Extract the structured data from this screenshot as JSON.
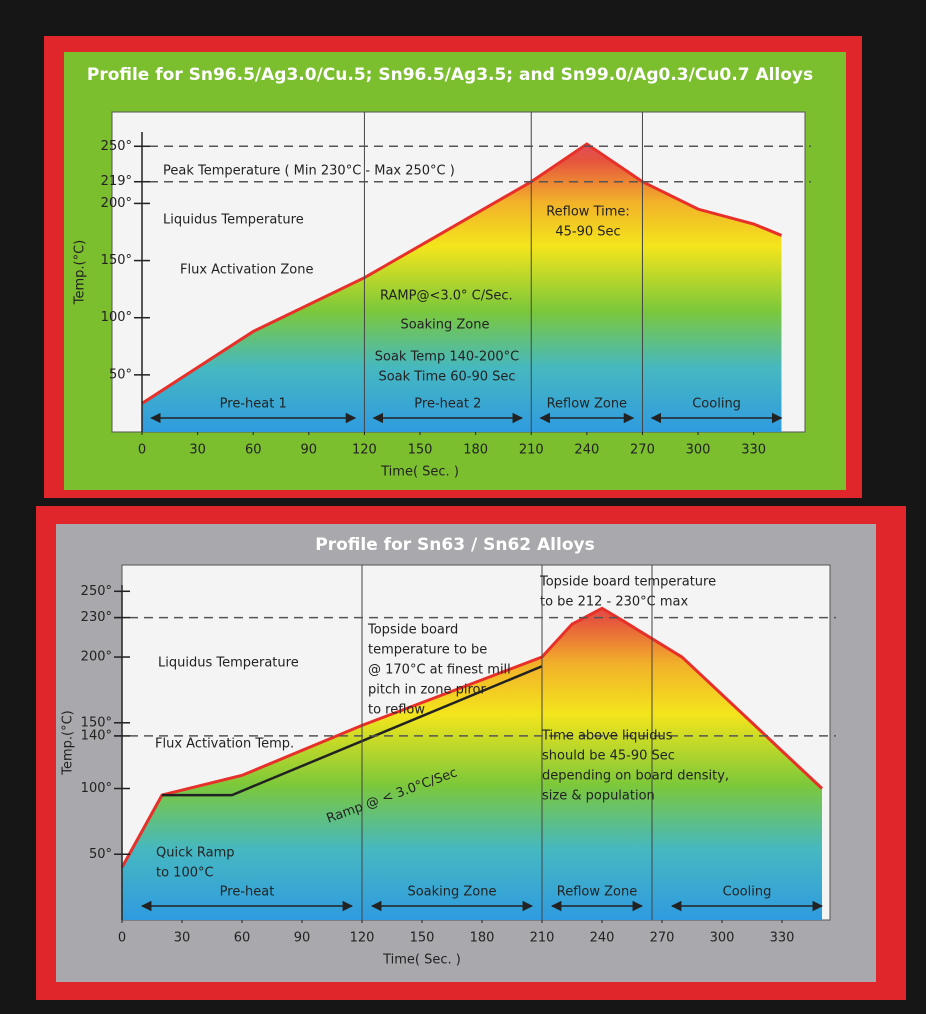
{
  "chart_data": [
    {
      "type": "area",
      "title": "Profile for Sn96.5/Ag3.0/Cu.5; Sn96.5/Ag3.5; and Sn99.0/Ag0.3/Cu0.7 Alloys",
      "xlabel": "Time( Sec. )",
      "ylabel": "Temp.(°C)",
      "x": [
        0,
        60,
        120,
        210,
        240,
        270,
        300,
        330,
        345
      ],
      "series": [
        {
          "color": "#e8302a",
          "values": [
            25,
            88,
            135,
            219,
            252,
            219,
            195,
            182,
            172
          ]
        }
      ],
      "xlim": [
        0,
        355
      ],
      "ylim": [
        0,
        280
      ],
      "xticks": [
        0,
        30,
        60,
        90,
        120,
        150,
        180,
        210,
        240,
        270,
        300,
        330
      ],
      "yticks": [
        {
          "value": 50,
          "label": "50°"
        },
        {
          "value": 100,
          "label": "100°"
        },
        {
          "value": 150,
          "label": "150°"
        },
        {
          "value": 200,
          "label": "200°"
        },
        {
          "value": 219,
          "label": "219°"
        },
        {
          "value": 250,
          "label": "250°"
        }
      ],
      "reference_lines": [
        250,
        219
      ],
      "zone_dividers": [
        120,
        210,
        270
      ],
      "zones": [
        {
          "label": "Pre-heat 1",
          "range": [
            5,
            115
          ]
        },
        {
          "label": "Pre-heat 2",
          "range": [
            125,
            205
          ]
        },
        {
          "label": "Reflow Zone",
          "range": [
            215,
            265
          ]
        },
        {
          "label": "Cooling",
          "range": [
            275,
            345
          ]
        }
      ],
      "annotations": [
        {
          "lines": [
            "Peak Temperature ( Min 230°C - Max 250°C )"
          ]
        },
        {
          "lines": [
            "Liquidus Temperature"
          ]
        },
        {
          "lines": [
            "Flux Activation Zone"
          ]
        },
        {
          "lines": [
            "RAMP@<3.0° C/Sec."
          ]
        },
        {
          "lines": [
            "Soaking Zone"
          ]
        },
        {
          "lines": [
            "Soak Temp 140-200°C",
            "Soak Time 60-90 Sec"
          ]
        },
        {
          "lines": [
            "Reflow Time:",
            "45-90 Sec"
          ]
        }
      ]
    },
    {
      "type": "area",
      "title": "Profile for Sn63 / Sn62 Alloys",
      "xlabel": "Time( Sec. )",
      "ylabel": "Temp.(°C)",
      "x": [
        0,
        20,
        60,
        120,
        210,
        225,
        240,
        250,
        280,
        350
      ],
      "series": [
        {
          "color": "#e8302a",
          "values": [
            40,
            95,
            110,
            148,
            200,
            225,
            237,
            228,
            200,
            100
          ]
        },
        {
          "color": "#222222",
          "x": [
            20,
            55,
            210
          ],
          "values": [
            95,
            95,
            193
          ]
        }
      ],
      "xlim": [
        0,
        355
      ],
      "ylim": [
        0,
        270
      ],
      "xticks": [
        0,
        30,
        60,
        90,
        120,
        150,
        180,
        210,
        240,
        270,
        300,
        330
      ],
      "yticks": [
        {
          "value": 50,
          "label": "50°"
        },
        {
          "value": 100,
          "label": "100°"
        },
        {
          "value": 140,
          "label": "140°"
        },
        {
          "value": 150,
          "label": "150°"
        },
        {
          "value": 200,
          "label": "200°"
        },
        {
          "value": 230,
          "label": "230°"
        },
        {
          "value": 250,
          "label": "250°"
        }
      ],
      "reference_lines": [
        230,
        140
      ],
      "zone_dividers": [
        120,
        210,
        265
      ],
      "zones": [
        {
          "label": "Pre-heat",
          "range": [
            10,
            115
          ]
        },
        {
          "label": "Soaking Zone",
          "range": [
            125,
            205
          ]
        },
        {
          "label": "Reflow Zone",
          "range": [
            215,
            260
          ]
        },
        {
          "label": "Cooling",
          "range": [
            275,
            350
          ]
        }
      ],
      "annotations": [
        {
          "lines": [
            "Liquidus Temperature"
          ]
        },
        {
          "lines": [
            "Flux Activation Temp."
          ]
        },
        {
          "lines": [
            "Topside board",
            "temperature to be",
            "@ 170°C at finest mill",
            "pitch in zone piror",
            "to reflow"
          ]
        },
        {
          "lines": [
            "Topside board temperature",
            "to be 212 - 230°C max"
          ]
        },
        {
          "lines": [
            "Time above liquidus",
            "should be 45-90 Sec",
            "depending on board density,",
            "size & population"
          ]
        },
        {
          "lines": [
            "Ramp @ < 3.0°C/Sec"
          ]
        },
        {
          "lines": [
            "Quick Ramp",
            "to 100°C"
          ]
        }
      ]
    }
  ]
}
